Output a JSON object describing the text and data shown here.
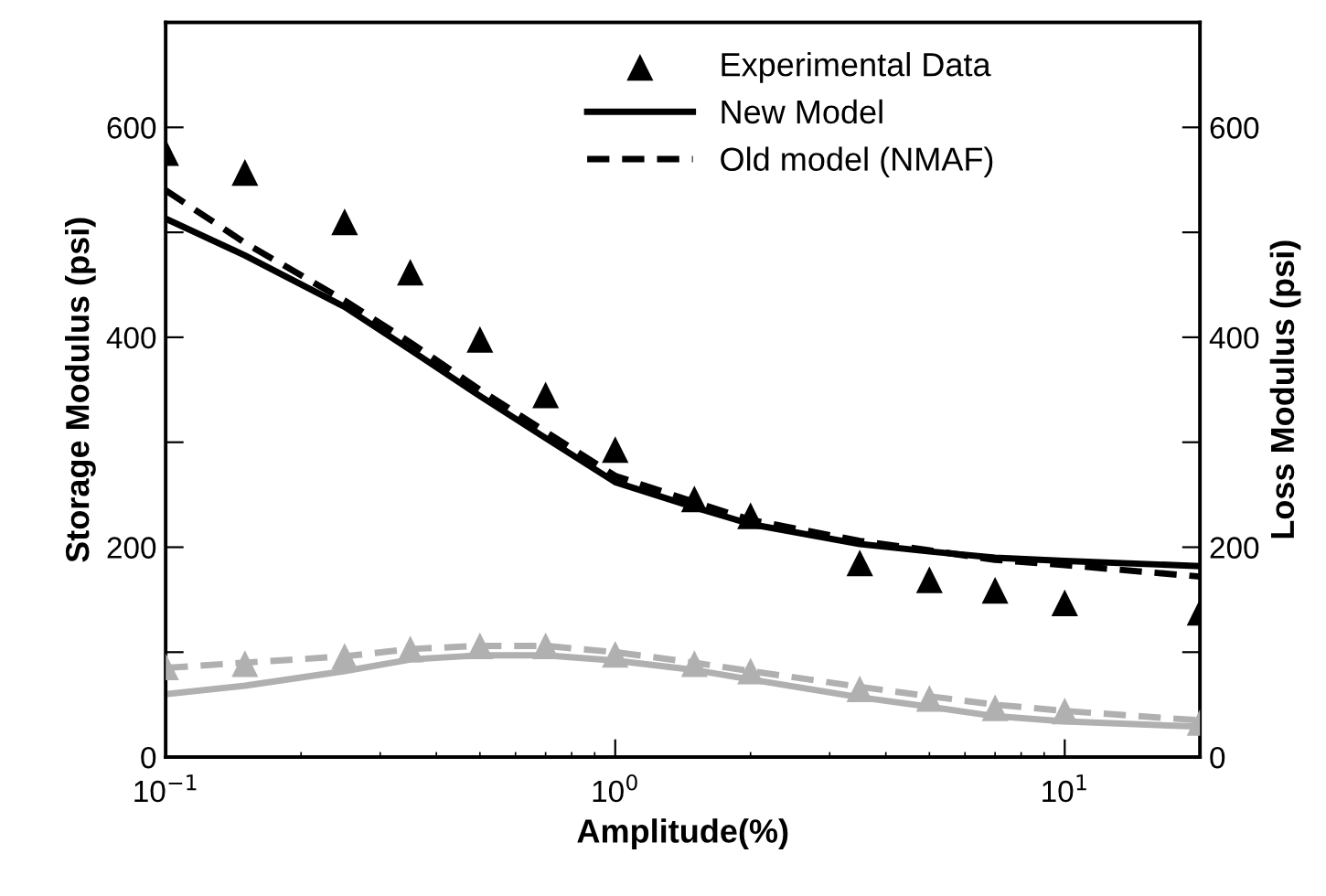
{
  "chart_data": {
    "type": "line",
    "xlabel": "Amplitude(%)",
    "ylabel": "Storage Modulus (psi)",
    "y2label": "Loss Modulus (psi)",
    "log": "x",
    "xlim": [
      0.1,
      20
    ],
    "xticks": [
      {
        "value": 0.1,
        "label": "10$^{−1}$"
      },
      {
        "value": 1,
        "label": "10$^{0}$"
      },
      {
        "value": 10,
        "label": "10$^{1}$"
      }
    ],
    "ylim": [
      0,
      700
    ],
    "yticks": [
      0,
      {
        "value": 100,
        "label": null
      },
      200,
      {
        "value": 300,
        "label": null
      },
      400,
      {
        "value": 500,
        "label": null
      },
      600
    ],
    "y2lim": [
      0,
      700
    ],
    "y2ticks": [
      0,
      {
        "value": 100,
        "label": null
      },
      200,
      {
        "value": 300,
        "label": null
      },
      400,
      {
        "value": 500,
        "label": null
      },
      600
    ],
    "legend": "top right",
    "grid": false,
    "x": [
      0.1,
      0.15,
      0.25,
      0.35,
      0.5,
      0.7,
      1,
      1.5,
      2,
      3.5,
      5,
      7,
      10,
      20
    ],
    "series": [
      {
        "name": "Experimental Data",
        "type": "scatter",
        "marker": "triangle",
        "color": "#000000",
        "values": [
          576,
          557,
          510,
          462,
          398,
          345,
          293,
          246,
          230,
          185,
          169,
          159,
          147,
          138
        ]
      },
      {
        "name": "New Model",
        "line_style": "solid",
        "marker": "none",
        "color": "#000000",
        "values": [
          513,
          478,
          429,
          388,
          344,
          304,
          262,
          238,
          222,
          203,
          196,
          190,
          187,
          182
        ]
      },
      {
        "name": "Old model (NMAF)",
        "line_style": "dashed",
        "marker": "none",
        "color": "#000000",
        "values": [
          540,
          490,
          435,
          395,
          350,
          310,
          268,
          243,
          226,
          206,
          197,
          188,
          183,
          172
        ]
      },
      {
        "type": "scatter",
        "marker": "triangle",
        "axis": "y2",
        "color": "#b0b0b0",
        "values": [
          86,
          89,
          96,
          103,
          106,
          106,
          98,
          89,
          82,
          65,
          56,
          47,
          44,
          33
        ]
      },
      {
        "line_style": "solid",
        "marker": "none",
        "axis": "y2",
        "color": "#b0b0b0",
        "values": [
          60,
          68,
          82,
          93,
          97,
          97,
          92,
          83,
          74,
          57,
          48,
          39,
          34,
          29
        ]
      },
      {
        "line_style": "dashed",
        "marker": "none",
        "axis": "y2",
        "color": "#b0b0b0",
        "values": [
          85,
          90,
          96,
          103,
          106,
          106,
          100,
          90,
          82,
          67,
          58,
          50,
          44,
          35
        ]
      }
    ]
  }
}
